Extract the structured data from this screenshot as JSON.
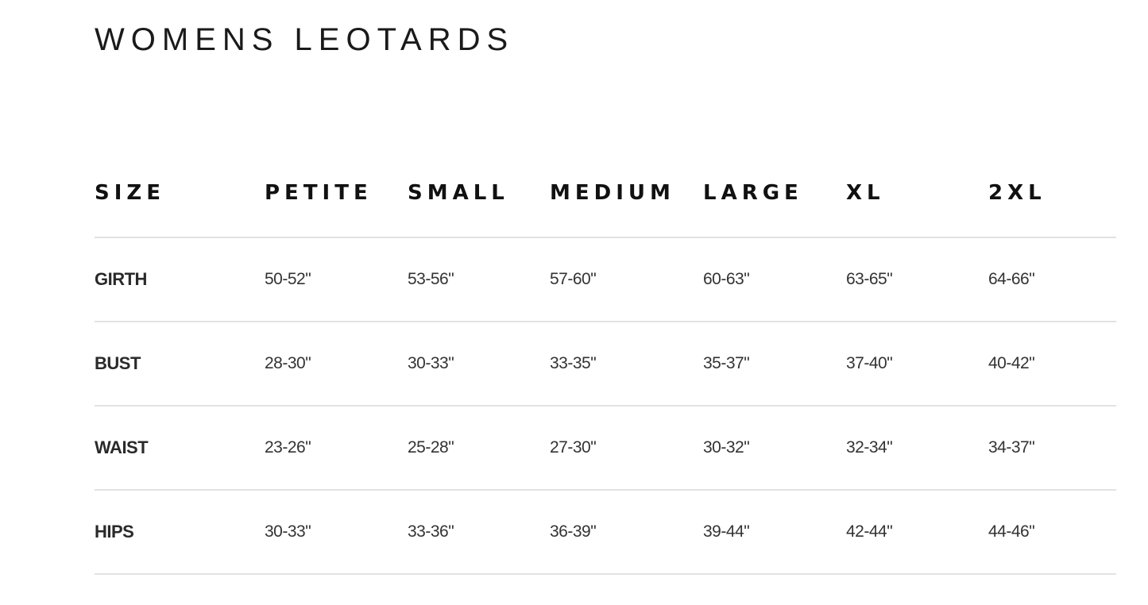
{
  "title": "WOMENS LEOTARDS",
  "table": {
    "headers": [
      "SIZE",
      "PETITE",
      "SMALL",
      "MEDIUM",
      "LARGE",
      "XL",
      "2XL"
    ],
    "rows": [
      {
        "label": "GIRTH",
        "values": [
          "50-52\"",
          "53-56\"",
          "57-60\"",
          "60-63\"",
          "63-65\"",
          "64-66\""
        ]
      },
      {
        "label": "BUST",
        "values": [
          "28-30\"",
          "30-33\"",
          "33-35\"",
          "35-37\"",
          "37-40\"",
          "40-42\""
        ]
      },
      {
        "label": "WAIST",
        "values": [
          "23-26\"",
          "25-28\"",
          "27-30\"",
          "30-32\"",
          "32-34\"",
          "34-37\""
        ]
      },
      {
        "label": "HIPS",
        "values": [
          "30-33\"",
          "33-36\"",
          "36-39\"",
          "39-44\"",
          "42-44\"",
          "44-46\""
        ]
      }
    ]
  }
}
